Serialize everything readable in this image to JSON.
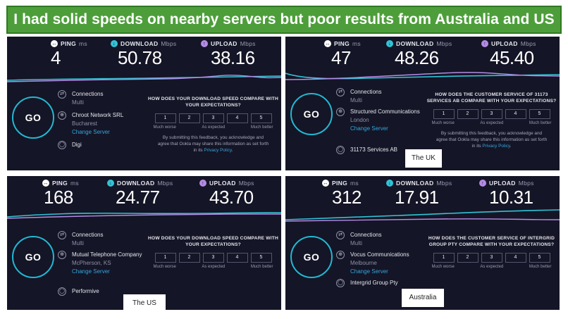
{
  "banner": "I had solid speeds on nearby servers but poor results from Australia and US",
  "metric_labels": {
    "ping": "PING",
    "ping_unit": "ms",
    "download": "DOWNLOAD",
    "download_unit": "Mbps",
    "upload": "UPLOAD",
    "upload_unit": "Mbps"
  },
  "go_label": "GO",
  "connections_label": "Connections",
  "connections_mode": "Multi",
  "change_server": "Change Server",
  "scale": [
    "1",
    "2",
    "3",
    "4",
    "5"
  ],
  "scale_labels": {
    "low": "Much worse",
    "mid": "As expected",
    "high": "Much better"
  },
  "disclaimer_text": "By submitting this feedback, you acknowledge and agree that Ookla may share this information as set forth in its ",
  "privacy_link": "Privacy Policy",
  "questions": {
    "download": "HOW DOES YOUR DOWNLOAD SPEED COMPARE WITH YOUR EXPECTATIONS?"
  },
  "colors": {
    "accent_download": "#31c4d6",
    "accent_upload": "#b58be6",
    "panel_bg": "#141526",
    "banner": "#4d9e3a"
  },
  "panels": [
    {
      "ping": "4",
      "download": "50.78",
      "upload": "38.16",
      "server_name": "Chroot Network SRL",
      "server_location": "Bucharest",
      "isp": "Digi",
      "question": "HOW DOES YOUR DOWNLOAD SPEED COMPARE WITH YOUR EXPECTATIONS?",
      "caption": ""
    },
    {
      "ping": "47",
      "download": "48.26",
      "upload": "45.40",
      "server_name": "Structured Communications",
      "server_location": "London",
      "isp": "31173 Services AB",
      "question": "HOW DOES THE CUSTOMER SERVICE OF 31173 SERVICES AB COMPARE WITH YOUR EXPECTATIONS?",
      "caption": "The UK"
    },
    {
      "ping": "168",
      "download": "24.77",
      "upload": "43.70",
      "server_name": "Mutual Telephone Company",
      "server_location": "McPherson, KS",
      "isp": "Performive",
      "question": "HOW DOES YOUR DOWNLOAD SPEED COMPARE WITH YOUR EXPECTATIONS?",
      "caption": "The US"
    },
    {
      "ping": "312",
      "download": "17.91",
      "upload": "10.31",
      "server_name": "Vocus Communications",
      "server_location": "Melbourne",
      "isp": "Intergrid Group Pty",
      "question": "HOW DOES THE CUSTOMER SERVICE OF INTERGRID GROUP PTY COMPARE WITH YOUR EXPECTATIONS?",
      "caption": "Australia"
    }
  ]
}
